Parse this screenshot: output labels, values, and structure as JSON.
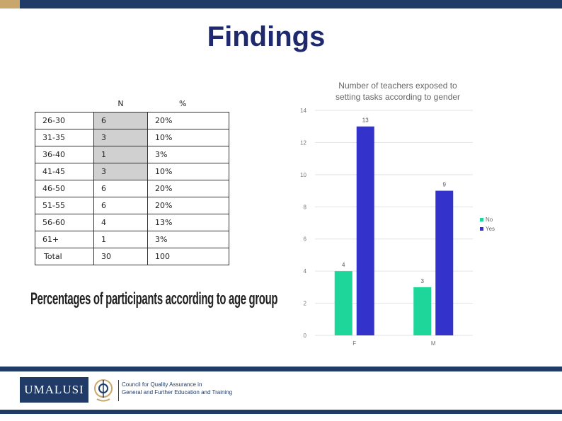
{
  "slide": {
    "title": "Findings"
  },
  "age_table": {
    "headers": [
      "",
      "N",
      "%"
    ],
    "rows": [
      {
        "age": "26-30",
        "n": "6",
        "pct": "20%"
      },
      {
        "age": "31-35",
        "n": "3",
        "pct": "10%"
      },
      {
        "age": "36-40",
        "n": "1",
        "pct": "3%"
      },
      {
        "age": "41-45",
        "n": "3",
        "pct": "10%"
      },
      {
        "age": "46-50",
        "n": "6",
        "pct": "20%"
      },
      {
        "age": "51-55",
        "n": "6",
        "pct": "20%"
      },
      {
        "age": "56-60",
        "n": "4",
        "pct": "13%"
      },
      {
        "age": "61+",
        "n": "1",
        "pct": "3%"
      },
      {
        "age": "Total",
        "n": "30",
        "pct": "100"
      }
    ],
    "caption": "Percentages of participants according to age group"
  },
  "chart_data": {
    "type": "bar",
    "title": "Number of teachers exposed to setting tasks according to gender",
    "categories": [
      "F",
      "M"
    ],
    "series": [
      {
        "name": "No",
        "values": [
          4,
          3
        ],
        "color": "#1fd69a"
      },
      {
        "name": "Yes",
        "values": [
          13,
          9
        ],
        "color": "#3333cc"
      }
    ],
    "ylim": [
      0,
      14
    ],
    "yticks": [
      0,
      2,
      4,
      6,
      8,
      10,
      12,
      14
    ],
    "grid": true,
    "legend": "right"
  },
  "footer": {
    "logo_text": "UMALUSI",
    "org_line1": "Council for Quality Assurance in",
    "org_line2": "General and Further Education and Training"
  },
  "colors": {
    "brand_navy": "#1f3b66",
    "brand_gold": "#c9a66b",
    "title_blue": "#1f2a6e"
  }
}
